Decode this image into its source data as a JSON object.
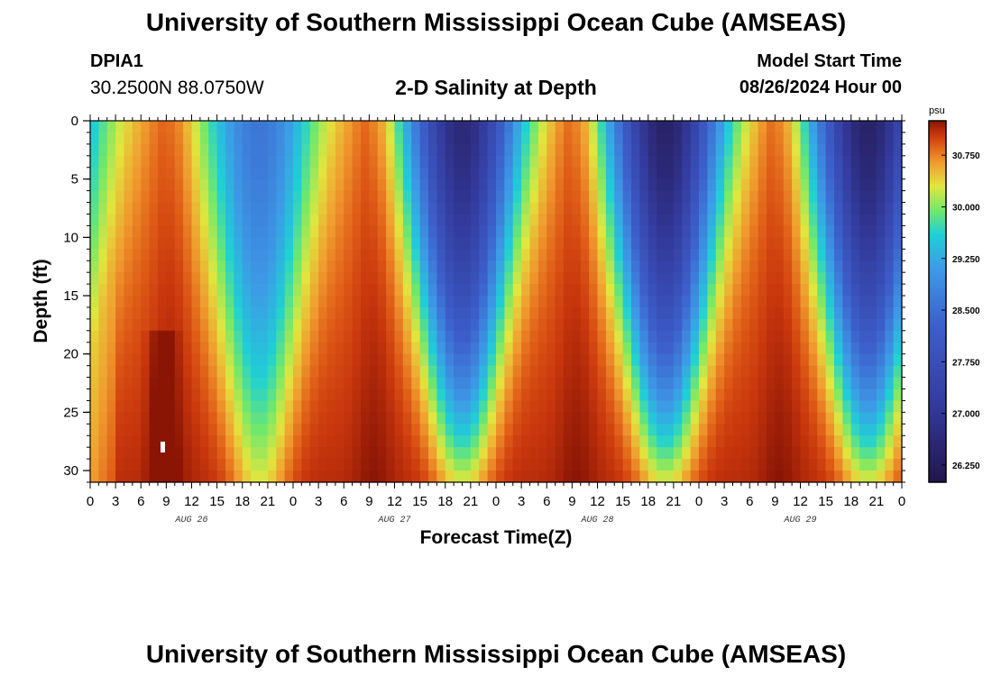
{
  "header": {
    "title_top": "University of Southern Mississippi Ocean Cube (AMSEAS)",
    "title_bottom": "University of Southern Mississippi Ocean Cube (AMSEAS)",
    "station_id": "DPIA1",
    "coordinates": "30.2500N  88.0750W",
    "plot_title": "2-D Salinity at Depth",
    "model_start_label": "Model Start Time",
    "model_start_value": "08/26/2024 Hour 00"
  },
  "chart_data": {
    "type": "heatmap",
    "title": "2-D Salinity at Depth",
    "xlabel": "Forecast Time(Z)",
    "ylabel": "Depth (ft)",
    "x_range_hours": [
      0,
      96
    ],
    "y_range_ft": [
      0,
      31
    ],
    "x_tick_labels": [
      "0",
      "3",
      "6",
      "9",
      "12",
      "15",
      "18",
      "21",
      "0",
      "3",
      "6",
      "9",
      "12",
      "15",
      "18",
      "21",
      "0",
      "3",
      "6",
      "9",
      "12",
      "15",
      "18",
      "21",
      "0",
      "3",
      "6",
      "9",
      "12",
      "15",
      "18",
      "21",
      "0"
    ],
    "y_ticks": [
      0,
      5,
      10,
      15,
      20,
      25,
      30
    ],
    "y_tick_labels": [
      "0",
      "5",
      "10",
      "15",
      "20",
      "25",
      "30"
    ],
    "date_labels": [
      {
        "label": "AUG 26",
        "hour": 12
      },
      {
        "label": "AUG 27",
        "hour": 36
      },
      {
        "label": "AUG 28",
        "hour": 60
      },
      {
        "label": "AUG 29",
        "hour": 84
      }
    ],
    "colorbar": {
      "unit": "psu",
      "min": 26.0,
      "max": 31.25,
      "tick_values": [
        30.75,
        30.0,
        29.25,
        28.5,
        27.75,
        27.0,
        26.25
      ],
      "tick_labels": [
        "30.750",
        "30.000",
        "29.250",
        "28.500",
        "27.750",
        "27.000",
        "26.250"
      ]
    },
    "description_points": {
      "high_salinity_cores_hour": [
        9,
        33,
        57,
        81
      ],
      "low_salinity_minima_hour": [
        20,
        44,
        68,
        92
      ],
      "surface_min_psu": 26.3,
      "bottom_max_psu": 31.1
    },
    "colors": {
      "dark_red": "#8a1505",
      "red": "#c8360d",
      "orange_red": "#de5a16",
      "orange": "#f09a2e",
      "yellow": "#e2e63e",
      "green": "#72e86a",
      "cyan": "#1fd0d6",
      "light_blue": "#3d9ae6",
      "blue": "#3d60cc",
      "indigo": "#333a9c",
      "dark_navy": "#22154a"
    }
  }
}
